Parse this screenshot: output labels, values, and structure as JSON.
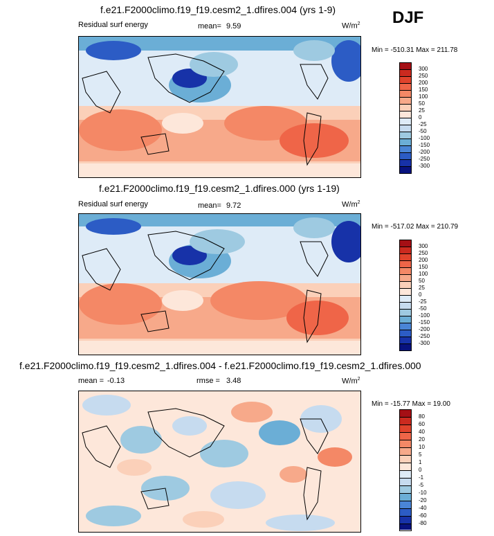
{
  "season": "DJF",
  "panels": [
    {
      "title": "f.e21.F2000climo.f19_f19.cesm2_1.dfires.004 (yrs 1-9)",
      "left_label": "Residual surf energy",
      "mean_label": "mean=",
      "mean_value": "9.59",
      "units": "W/m",
      "units_sup": "2",
      "minmax": "Min = -510.31 Max = 211.78",
      "levels": [
        "300",
        "250",
        "200",
        "150",
        "100",
        "50",
        "25",
        "0",
        "-25",
        "-50",
        "-100",
        "-150",
        "-200",
        "-250",
        "-300"
      ],
      "colors": [
        "#a50f15",
        "#cb2a1f",
        "#e0432c",
        "#ef6548",
        "#f48866",
        "#f7a98a",
        "#fbd0b9",
        "#fde7da",
        "#deebf7",
        "#c6dbef",
        "#9ecae1",
        "#6baed6",
        "#4a85d6",
        "#2c5cc5",
        "#1732a8",
        "#08127e"
      ]
    },
    {
      "title": "f.e21.F2000climo.f19_f19.cesm2_1.dfires.000 (yrs 1-19)",
      "left_label": "Residual surf energy",
      "mean_label": "mean=",
      "mean_value": "9.72",
      "units": "W/m",
      "units_sup": "2",
      "minmax": "Min = -517.02 Max = 210.79",
      "levels": [
        "300",
        "250",
        "200",
        "150",
        "100",
        "50",
        "25",
        "0",
        "-25",
        "-50",
        "-100",
        "-150",
        "-200",
        "-250",
        "-300"
      ],
      "colors": [
        "#a50f15",
        "#cb2a1f",
        "#e0432c",
        "#ef6548",
        "#f48866",
        "#f7a98a",
        "#fbd0b9",
        "#fde7da",
        "#deebf7",
        "#c6dbef",
        "#9ecae1",
        "#6baed6",
        "#4a85d6",
        "#2c5cc5",
        "#1732a8",
        "#08127e"
      ]
    },
    {
      "title": "f.e21.F2000climo.f19_f19.cesm2_1.dfires.004 - f.e21.F2000climo.f19_f19.cesm2_1.dfires.000",
      "mean_label": "mean =",
      "mean_value": "-0.13",
      "rmse_label": "rmse =",
      "rmse_value": "3.48",
      "units": "W/m",
      "units_sup": "2",
      "minmax": "Min = -15.77 Max = 19.00",
      "levels": [
        "80",
        "60",
        "40",
        "20",
        "10",
        "5",
        "1",
        "0",
        "-1",
        "-5",
        "-10",
        "-20",
        "-40",
        "-60",
        "-80"
      ],
      "colors": [
        "#a50f15",
        "#cb2a1f",
        "#e0432c",
        "#ef6548",
        "#f48866",
        "#f7a98a",
        "#fbd0b9",
        "#fde7da",
        "#deebf7",
        "#c6dbef",
        "#9ecae1",
        "#6baed6",
        "#4a85d6",
        "#2c5cc5",
        "#1732a8",
        "#08127e"
      ]
    }
  ],
  "chart_data": [
    {
      "type": "heatmap",
      "title": "f.e21.F2000climo.f19_f19.cesm2_1.dfires.004 (yrs 1-9)",
      "variable": "Residual surf energy",
      "units": "W/m2",
      "mean": 9.59,
      "min": -510.31,
      "max": 211.78,
      "contour_levels": [
        -300,
        -250,
        -200,
        -150,
        -100,
        -50,
        -25,
        0,
        25,
        50,
        100,
        150,
        200,
        250,
        300
      ]
    },
    {
      "type": "heatmap",
      "title": "f.e21.F2000climo.f19_f19.cesm2_1.dfires.000 (yrs 1-19)",
      "variable": "Residual surf energy",
      "units": "W/m2",
      "mean": 9.72,
      "min": -517.02,
      "max": 210.79,
      "contour_levels": [
        -300,
        -250,
        -200,
        -150,
        -100,
        -50,
        -25,
        0,
        25,
        50,
        100,
        150,
        200,
        250,
        300
      ]
    },
    {
      "type": "heatmap",
      "title": "f.e21.F2000climo.f19_f19.cesm2_1.dfires.004 - f.e21.F2000climo.f19_f19.cesm2_1.dfires.000",
      "units": "W/m2",
      "mean": -0.13,
      "rmse": 3.48,
      "min": -15.77,
      "max": 19.0,
      "contour_levels": [
        -80,
        -60,
        -40,
        -20,
        -10,
        -5,
        -1,
        0,
        1,
        5,
        10,
        20,
        40,
        60,
        80
      ]
    }
  ]
}
